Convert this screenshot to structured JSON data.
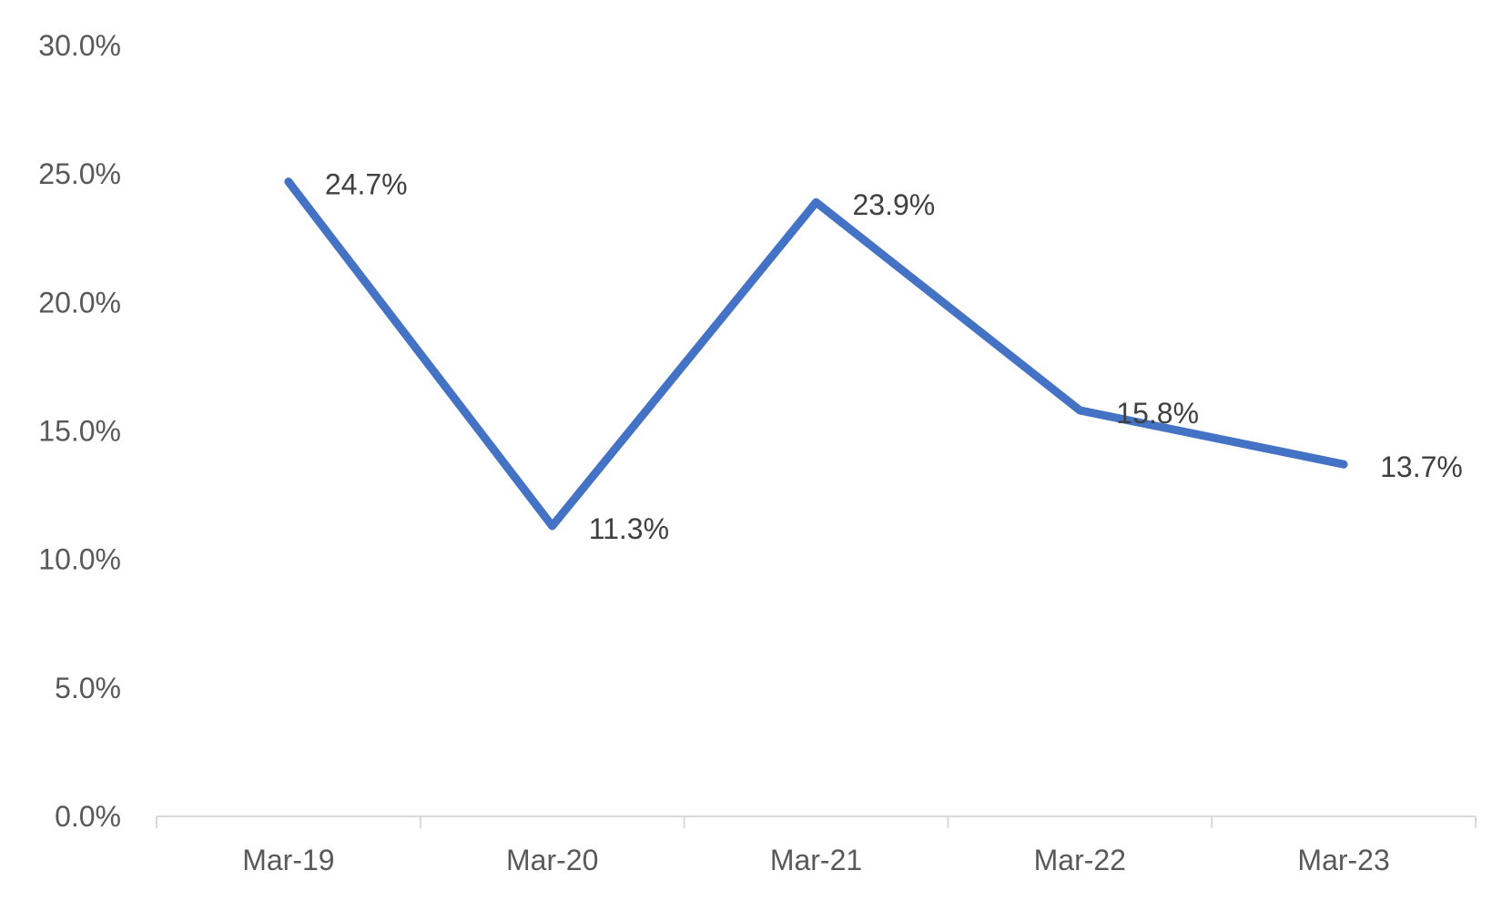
{
  "chart_data": {
    "type": "line",
    "title": "",
    "xlabel": "",
    "ylabel": "",
    "categories": [
      "Mar-19",
      "Mar-20",
      "Mar-21",
      "Mar-22",
      "Mar-23"
    ],
    "series": [
      {
        "values": [
          24.7,
          11.3,
          23.9,
          15.8,
          13.7
        ],
        "data_labels": [
          "24.7%",
          "11.3%",
          "23.9%",
          "15.8%",
          "13.7%"
        ],
        "color": "#4472C4"
      }
    ],
    "ylim": [
      0,
      30
    ],
    "yticks": [
      0,
      5,
      10,
      15,
      20,
      25,
      30
    ],
    "ytick_labels": [
      "0.0%",
      "5.0%",
      "10.0%",
      "15.0%",
      "20.0%",
      "25.0%",
      "30.0%"
    ],
    "grid": false,
    "legend": "none",
    "axis_color": "#D9D9D9",
    "tick_label_color": "#595959",
    "data_label_color": "#404040"
  }
}
